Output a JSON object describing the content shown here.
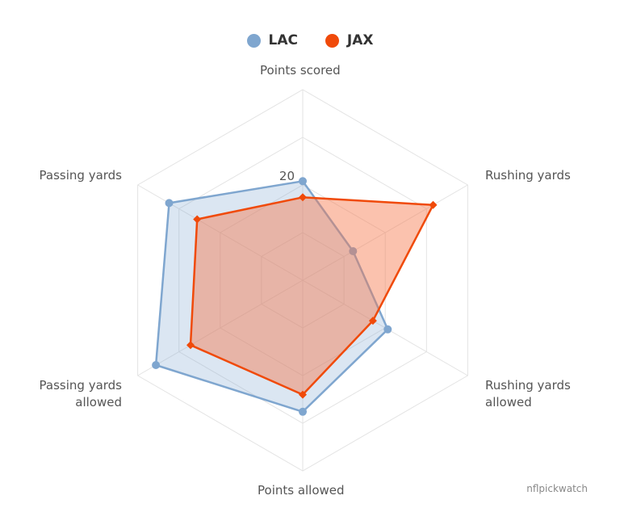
{
  "chart_data": {
    "type": "radar",
    "axes": [
      "Points scored",
      "Rushing yards",
      "Rushing yards allowed",
      "Points allowed",
      "Passing yards allowed",
      "Passing yards"
    ],
    "axis_label_lines": [
      [
        "Points scored"
      ],
      [
        "Rushing yards"
      ],
      [
        "Rushing yards",
        "allowed"
      ],
      [
        "Points allowed"
      ],
      [
        "Passing yards",
        "allowed"
      ],
      [
        "Passing yards"
      ]
    ],
    "range": [
      0,
      40
    ],
    "tick_label": "20",
    "grid_levels": 4,
    "series": [
      {
        "name": "LAC",
        "color": "#7fa6cf",
        "fill": "rgba(127,166,207,0.28)",
        "marker": "circle",
        "values": [
          20.8,
          12.2,
          20.6,
          27.6,
          35.6,
          32.4
        ]
      },
      {
        "name": "JAX",
        "color": "#f04a0a",
        "fill": "rgba(246,120,75,0.45)",
        "marker": "diamond",
        "values": [
          17.4,
          31.6,
          17.0,
          24.0,
          27.2,
          25.6
        ]
      }
    ],
    "legend_position": "top-center",
    "credit": "nflpickwatch"
  }
}
